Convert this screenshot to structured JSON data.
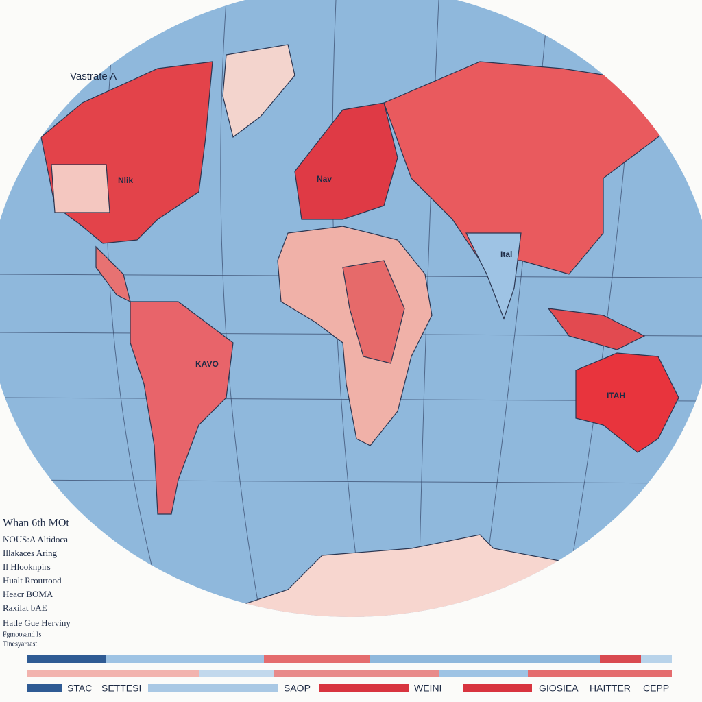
{
  "title": "Vastrate A",
  "map_labels": [
    "Nlik",
    "Nav",
    "KAVO",
    "Ital",
    "ITAH"
  ],
  "legend": {
    "lines": [
      "Whan 6th MOt",
      "NOUS:A Altidoca",
      "Illakaces Aring",
      "Il Hlooknpirs",
      "Hualt Rrourtood",
      "Heacr BOMA",
      "Raxilat bAE",
      "Hatle Gue Herviny",
      "Fgmoosand Is",
      "Tinesyaraast"
    ]
  },
  "key": {
    "items": [
      "STAC",
      "SETTESI",
      "SAOP",
      "WEINI",
      "GIOSIEA",
      "HAITTER",
      "CEPP"
    ]
  }
}
